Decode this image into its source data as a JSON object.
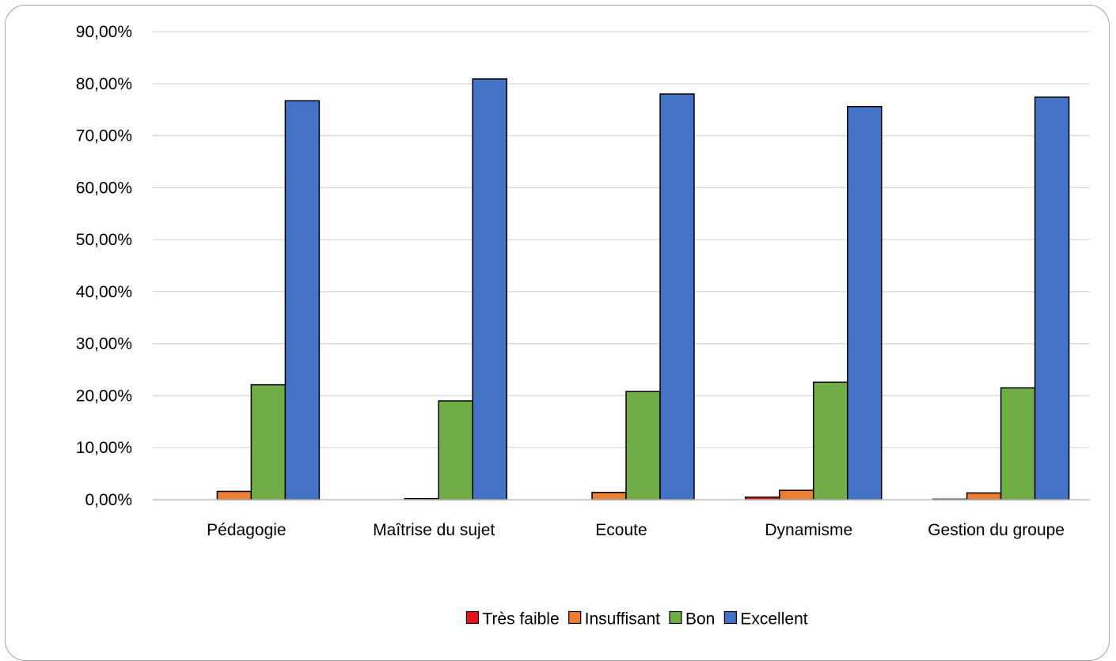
{
  "chart_data": {
    "type": "bar",
    "title": "",
    "xlabel": "",
    "ylabel": "",
    "categories": [
      "Pédagogie",
      "Maîtrise du sujet",
      "Ecoute",
      "Dynamisme",
      "Gestion du groupe"
    ],
    "series": [
      {
        "name": "Très faible",
        "color": "#e8141b",
        "values": [
          0.0,
          0.0,
          0.0,
          0.5,
          0.1
        ]
      },
      {
        "name": "Insuffisant",
        "color": "#ed7d31",
        "values": [
          1.6,
          0.2,
          1.4,
          1.8,
          1.3
        ]
      },
      {
        "name": "Bon",
        "color": "#70ad47",
        "values": [
          22.1,
          19.0,
          20.8,
          22.6,
          21.5
        ]
      },
      {
        "name": "Excellent",
        "color": "#4472c4",
        "values": [
          76.7,
          80.9,
          78.0,
          75.6,
          77.4
        ]
      }
    ],
    "ylim": [
      0,
      90
    ],
    "yticks": [
      0,
      10,
      20,
      30,
      40,
      50,
      60,
      70,
      80,
      90
    ],
    "ytick_labels": [
      "0,00%",
      "10,00%",
      "20,00%",
      "30,00%",
      "40,00%",
      "50,00%",
      "60,00%",
      "70,00%",
      "80,00%",
      "90,00%"
    ],
    "grid": true,
    "legend_position": "bottom"
  }
}
